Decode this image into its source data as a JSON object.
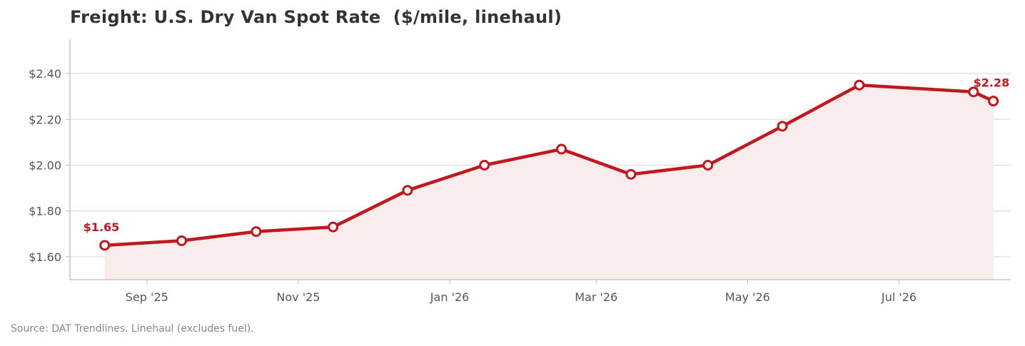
{
  "chart_data": {
    "type": "line",
    "title": "Freight: U.S. Dry Van Spot Rate  ($/mile, linehaul)",
    "xlabel": "",
    "ylabel": "",
    "x": [
      "2025-08-15",
      "2025-09-15",
      "2025-10-15",
      "2025-11-15",
      "2025-12-15",
      "2026-01-15",
      "2026-02-15",
      "2026-03-15",
      "2026-04-15",
      "2026-05-15",
      "2026-06-15",
      "2026-07-31",
      "2026-08-08"
    ],
    "series": [
      {
        "values": [
          1.65,
          1.67,
          1.71,
          1.73,
          1.89,
          2.0,
          2.07,
          1.96,
          2.0,
          2.17,
          2.35,
          2.32,
          2.28
        ]
      }
    ],
    "ylim": [
      1.5,
      2.55
    ],
    "yticks": [
      1.6,
      1.8,
      2.0,
      2.2,
      2.4
    ],
    "ytick_labels": [
      "$1.60",
      "$1.80",
      "$2.00",
      "$2.20",
      "$2.40"
    ],
    "xticks": [
      "2025-09-01",
      "2025-11-01",
      "2026-01-01",
      "2026-03-01",
      "2026-05-01",
      "2026-07-01"
    ],
    "xtick_labels": [
      "Sep '25",
      "Nov '25",
      "Jan '26",
      "Mar '26",
      "May '26",
      "Jul '26"
    ],
    "annotations": [
      {
        "index": 0,
        "text": "$1.65"
      },
      {
        "index": 12,
        "text": "$2.28"
      }
    ],
    "grid": "horizontal",
    "legend": "none",
    "colors": {
      "line": "#c0181e",
      "fill": "#f9ecec",
      "grid": "#dddddd",
      "axis": "#bbbbbb",
      "text": "#555555"
    }
  },
  "source": "Source: DAT Trendlines. Linehaul (excludes fuel)."
}
